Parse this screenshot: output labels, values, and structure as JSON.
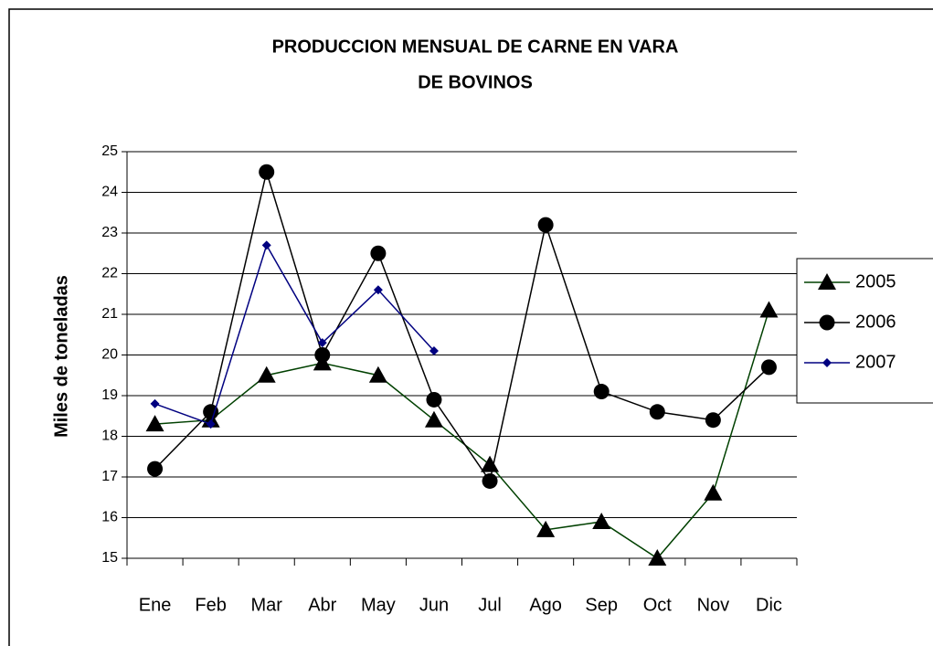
{
  "chart_data": {
    "type": "line",
    "title": [
      "PRODUCCION MENSUAL DE CARNE EN VARA",
      "DE BOVINOS"
    ],
    "y_label": "Miles de toneladas",
    "categories": [
      "Ene",
      "Feb",
      "Mar",
      "Abr",
      "May",
      "Jun",
      "Jul",
      "Ago",
      "Sep",
      "Oct",
      "Nov",
      "Dic"
    ],
    "series": [
      {
        "name": "2005",
        "color": "#004000",
        "marker": "triangle",
        "values": [
          18.3,
          18.4,
          19.5,
          19.8,
          19.5,
          18.4,
          17.3,
          15.7,
          15.9,
          15.0,
          16.6,
          21.1
        ]
      },
      {
        "name": "2006",
        "color": "#000000",
        "marker": "circle",
        "values": [
          17.2,
          18.6,
          24.5,
          20.0,
          22.5,
          18.9,
          16.9,
          23.2,
          19.1,
          18.6,
          18.4,
          19.7
        ]
      },
      {
        "name": "2007",
        "color": "#000080",
        "marker": "diamond",
        "values": [
          18.8,
          18.3,
          22.7,
          20.3,
          21.6,
          20.1,
          null,
          null,
          null,
          null,
          null,
          null
        ]
      }
    ],
    "ylim": [
      15,
      25
    ],
    "yticks": [
      15,
      16,
      17,
      18,
      19,
      20,
      21,
      22,
      23,
      24,
      25
    ],
    "grid": true,
    "legend": "right"
  }
}
